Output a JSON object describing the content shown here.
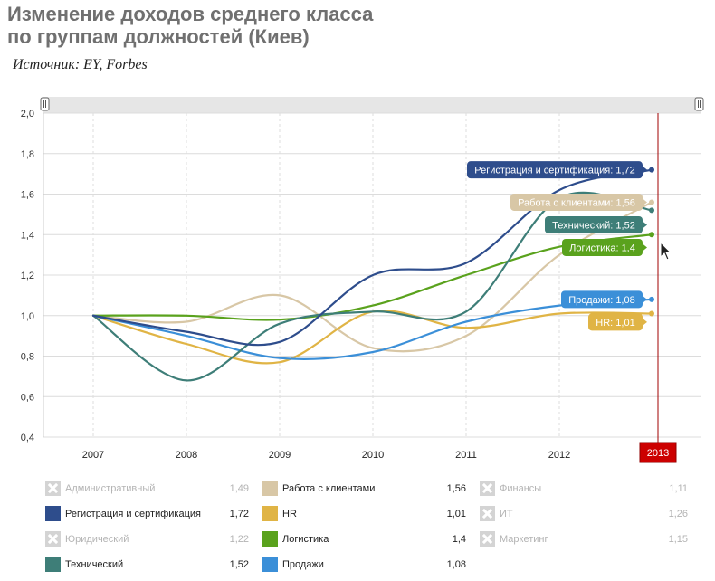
{
  "header": {
    "title_line1": "Изменение доходов среднего класса",
    "title_line2": "по группам должностей (Киев)",
    "source": "Источник: EY, Forbes"
  },
  "colors": {
    "background": "#ffffff",
    "grid": "#dcdcdc",
    "navigator": "#e6e6e6",
    "marker_line": "#a00000",
    "marker_badge": "#cc0000"
  },
  "chart_data": {
    "type": "line",
    "title": "Изменение доходов среднего класса по группам должностей (Киев)",
    "x": [
      "2007",
      "2008",
      "2009",
      "2010",
      "2011",
      "2012",
      "2013"
    ],
    "xlabel": "",
    "ylabel": "",
    "ylim": [
      0.4,
      2.0
    ],
    "yticks": [
      "0,4",
      "0,6",
      "0,8",
      "1,0",
      "1,2",
      "1,4",
      "1,6",
      "1,8",
      "2,0"
    ],
    "grid": true,
    "legend_position": "bottom",
    "highlighted_x": "2013",
    "series": [
      {
        "name": "Работа с клиентами",
        "color": "#d8c7a6",
        "values": [
          1.0,
          0.97,
          1.1,
          0.84,
          0.9,
          1.3,
          1.56
        ],
        "tooltip": "Работа с клиентами: 1,56"
      },
      {
        "name": "HR",
        "color": "#e0b445",
        "values": [
          1.0,
          0.86,
          0.77,
          1.02,
          0.94,
          1.01,
          1.01
        ],
        "tooltip": "HR: 1,01"
      },
      {
        "name": "Продажи",
        "color": "#3b8fd8",
        "values": [
          1.0,
          0.9,
          0.79,
          0.82,
          0.97,
          1.05,
          1.08
        ],
        "tooltip": "Продажи: 1,08"
      },
      {
        "name": "Логистика",
        "color": "#5aa21d",
        "values": [
          1.0,
          1.0,
          0.98,
          1.05,
          1.2,
          1.34,
          1.4
        ],
        "tooltip": "Логистика: 1,4"
      },
      {
        "name": "Технический",
        "color": "#3e7e78",
        "values": [
          1.0,
          0.68,
          0.96,
          1.02,
          1.02,
          1.58,
          1.52
        ],
        "tooltip": "Технический: 1,52"
      },
      {
        "name": "Регистрация и сертификация",
        "color": "#2e4d8c",
        "values": [
          1.0,
          0.92,
          0.87,
          1.2,
          1.26,
          1.62,
          1.72
        ],
        "tooltip": "Регистрация и сертификация: 1,72"
      }
    ],
    "legend": [
      {
        "name": "Административный",
        "value": "1,49",
        "active": false,
        "color": "#d4d4d4"
      },
      {
        "name": "Регистрация и сертификация",
        "value": "1,72",
        "active": true,
        "color": "#2e4d8c"
      },
      {
        "name": "Юридический",
        "value": "1,22",
        "active": false,
        "color": "#d4d4d4"
      },
      {
        "name": "Технический",
        "value": "1,52",
        "active": true,
        "color": "#3e7e78"
      },
      {
        "name": "Работа с клиентами",
        "value": "1,56",
        "active": true,
        "color": "#d8c7a6"
      },
      {
        "name": "HR",
        "value": "1,01",
        "active": true,
        "color": "#e0b445"
      },
      {
        "name": "Логистика",
        "value": "1,4",
        "active": true,
        "color": "#5aa21d"
      },
      {
        "name": "Продажи",
        "value": "1,08",
        "active": true,
        "color": "#3b8fd8"
      },
      {
        "name": "Финансы",
        "value": "1,11",
        "active": false,
        "color": "#d4d4d4"
      },
      {
        "name": "ИТ",
        "value": "1,26",
        "active": false,
        "color": "#d4d4d4"
      },
      {
        "name": "Маркетинг",
        "value": "1,15",
        "active": false,
        "color": "#d4d4d4"
      }
    ]
  }
}
